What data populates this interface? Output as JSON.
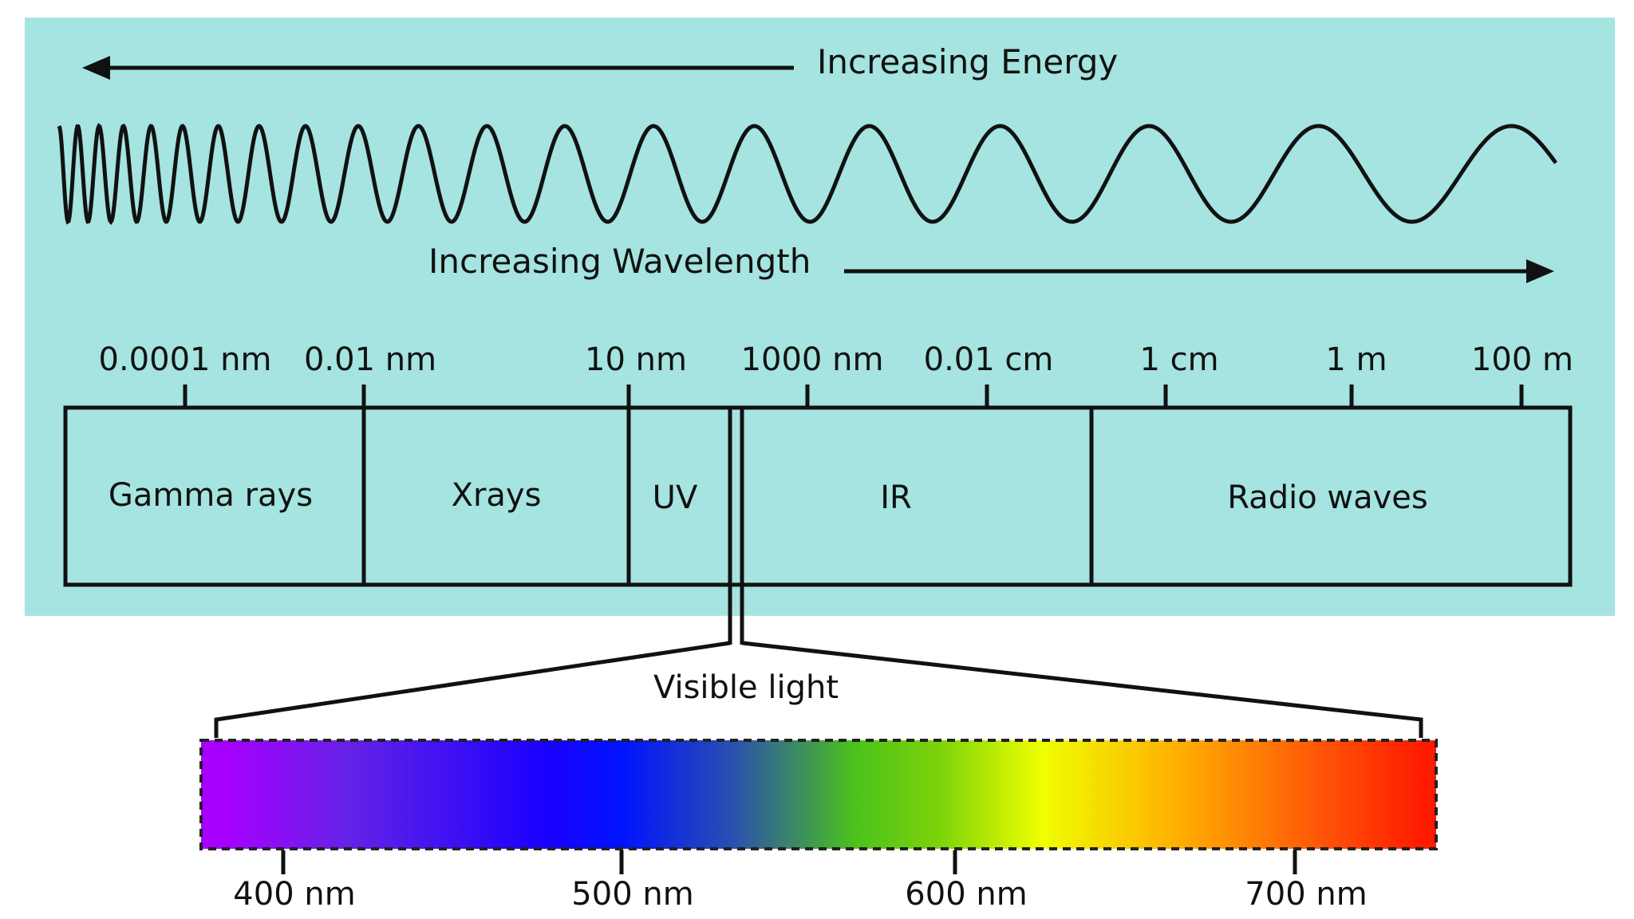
{
  "colors": {
    "panel_background": "#a5e4e0",
    "line": "#111111",
    "spectrum_stops": [
      "#a700ff",
      "#6422e6",
      "#1a00ff",
      "#0013ff",
      "#2a4fb0",
      "#4cc21a",
      "#7fd40a",
      "#efff00",
      "#ffb000",
      "#ff5a08",
      "#ff1a00"
    ]
  },
  "energy_arrow": {
    "label": "Increasing Energy",
    "direction": "left"
  },
  "wavelength_arrow": {
    "label": "Increasing Wavelength",
    "direction": "right"
  },
  "wave": {
    "description_icon": "sine-wave-icon"
  },
  "scale_ticks": [
    {
      "label": "0.0001 nm"
    },
    {
      "label": "0.01 nm"
    },
    {
      "label": "10 nm"
    },
    {
      "label": "1000 nm"
    },
    {
      "label": "0.01 cm"
    },
    {
      "label": "1 cm"
    },
    {
      "label": "1 m"
    },
    {
      "label": "100 m"
    }
  ],
  "bands": [
    {
      "label": "Gamma rays"
    },
    {
      "label": "Xrays"
    },
    {
      "label": "UV"
    },
    {
      "label": "IR"
    },
    {
      "label": "Radio waves"
    }
  ],
  "visible_light": {
    "label": "Visible light",
    "ticks": [
      {
        "label": "400 nm"
      },
      {
        "label": "500 nm"
      },
      {
        "label": "600 nm"
      },
      {
        "label": "700 nm"
      }
    ]
  }
}
